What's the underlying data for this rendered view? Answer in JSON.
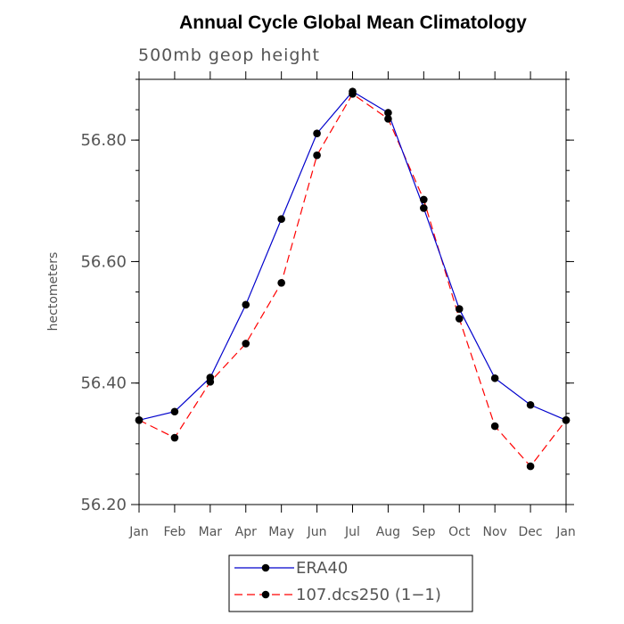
{
  "chart_data": {
    "type": "line",
    "title": "Annual Cycle Global Mean Climatology",
    "subtitle": "500mb geop height",
    "ylabel": "hectometers",
    "xlabel": "",
    "categories": [
      "Jan",
      "Feb",
      "Mar",
      "Apr",
      "May",
      "Jun",
      "Jul",
      "Aug",
      "Sep",
      "Oct",
      "Nov",
      "Dec",
      "Jan"
    ],
    "ylim": [
      56.2,
      56.9
    ],
    "yticks": [
      "56.20",
      "56.40",
      "56.60",
      "56.80"
    ],
    "series": [
      {
        "name": "ERA40",
        "color": "#0000cc",
        "style": "solid",
        "values": [
          56.339,
          56.353,
          56.409,
          56.529,
          56.67,
          56.811,
          56.88,
          56.845,
          56.688,
          56.522,
          56.408,
          56.364,
          56.339
        ]
      },
      {
        "name": "107.dcs250 (1−1)",
        "color": "#ff0000",
        "style": "dashed",
        "values": [
          56.339,
          56.31,
          56.402,
          56.465,
          56.565,
          56.775,
          56.876,
          56.835,
          56.702,
          56.506,
          56.329,
          56.263,
          56.339
        ]
      }
    ],
    "grid": false,
    "legend_position": "bottom-center"
  }
}
